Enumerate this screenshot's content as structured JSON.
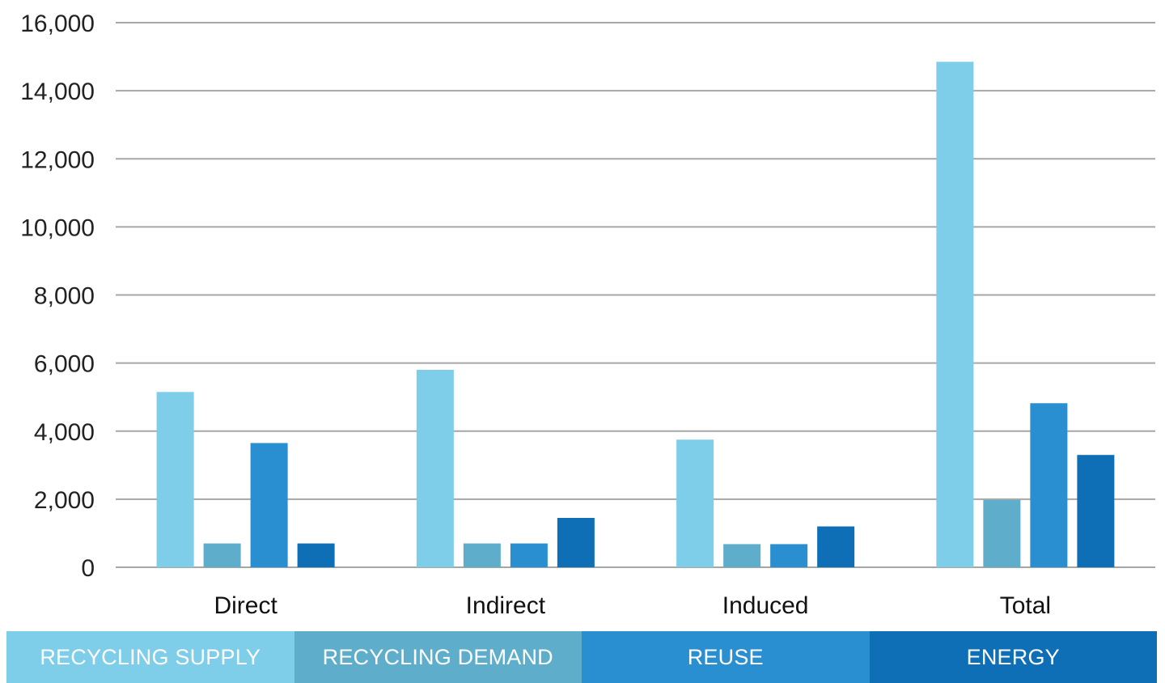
{
  "chart_data": {
    "type": "bar",
    "categories": [
      "Direct",
      "Indirect",
      "Induced",
      "Total"
    ],
    "series": [
      {
        "name": "RECYCLING SUPPLY",
        "color": "#7ecde9",
        "values": [
          5150,
          5800,
          3750,
          14850
        ]
      },
      {
        "name": "RECYCLING DEMAND",
        "color": "#5eaecb",
        "values": [
          700,
          700,
          680,
          1980
        ]
      },
      {
        "name": "REUSE",
        "color": "#2a8fd1",
        "values": [
          3650,
          700,
          680,
          4820
        ]
      },
      {
        "name": "ENERGY",
        "color": "#0f6fb6",
        "values": [
          700,
          1450,
          1200,
          3300
        ]
      }
    ],
    "ylim": [
      0,
      16000
    ],
    "yticks": [
      0,
      2000,
      4000,
      6000,
      8000,
      10000,
      12000,
      14000,
      16000
    ],
    "ytick_labels": [
      "0",
      "2,000",
      "4,000",
      "6,000",
      "8,000",
      "10,000",
      "12,000",
      "14,000",
      "16,000"
    ],
    "grid": true,
    "legend_position": "bottom",
    "title": "",
    "xlabel": "",
    "ylabel": ""
  }
}
